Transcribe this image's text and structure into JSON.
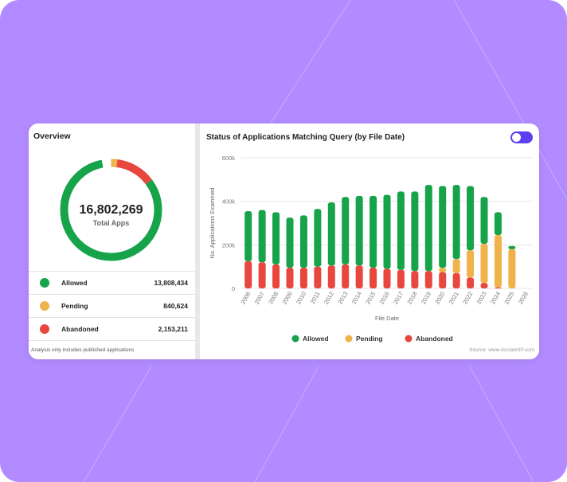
{
  "colors": {
    "background": "#b18bff",
    "allowed": "#16a34a",
    "pending": "#f0b24a",
    "abandoned": "#e8473d",
    "toggle": "#5b3ff0"
  },
  "overview": {
    "title": "Overview",
    "total": "16,802,269",
    "total_label": "Total Apps",
    "legend": [
      {
        "label": "Allowed",
        "value": "13,808,434",
        "color": "#16a34a",
        "amount": 13808434
      },
      {
        "label": "Pending",
        "value": "840,624",
        "color": "#f0b24a",
        "amount": 840624
      },
      {
        "label": "Abandoned",
        "value": "2,153,211",
        "color": "#e8473d",
        "amount": 2153211
      }
    ],
    "note": "Analysis only includes published applications"
  },
  "chart_panel": {
    "title": "Status of Applications Matching Query (by File Date)",
    "source": "Source: www.AcclaimIP.com",
    "toggle_on": true
  },
  "chart_data": {
    "type": "bar",
    "stacked": true,
    "title": "Status of Applications Matching Query (by File Date)",
    "xlabel": "File Date",
    "ylabel": "No. Applications Examined",
    "ylim": [
      0,
      600000
    ],
    "yticks": [
      "0",
      "200k",
      "400k",
      "600k"
    ],
    "ytick_values": [
      0,
      200000,
      400000,
      600000
    ],
    "categories": [
      "2006",
      "2007",
      "2008",
      "2009",
      "2010",
      "2011",
      "2012",
      "2013",
      "2014",
      "2015",
      "2016",
      "2017",
      "2018",
      "2019",
      "2020",
      "2021",
      "2022",
      "2023",
      "2024",
      "2025",
      "2026"
    ],
    "series": [
      {
        "name": "Abandoned",
        "color": "#e8473d",
        "values": [
          125000,
          120000,
          110000,
          95000,
          95000,
          100000,
          105000,
          110000,
          105000,
          95000,
          90000,
          85000,
          80000,
          80000,
          75000,
          70000,
          50000,
          25000,
          5000,
          0,
          0
        ]
      },
      {
        "name": "Pending",
        "color": "#f0b24a",
        "values": [
          0,
          0,
          0,
          0,
          0,
          0,
          0,
          0,
          0,
          0,
          0,
          0,
          0,
          0,
          20000,
          65000,
          125000,
          180000,
          240000,
          180000,
          0
        ]
      },
      {
        "name": "Allowed",
        "color": "#16a34a",
        "values": [
          230000,
          240000,
          240000,
          230000,
          240000,
          265000,
          290000,
          310000,
          320000,
          330000,
          340000,
          360000,
          365000,
          395000,
          375000,
          340000,
          295000,
          215000,
          105000,
          15000,
          0
        ]
      }
    ],
    "legend": [
      "Allowed",
      "Pending",
      "Abandoned"
    ],
    "legend_position": "bottom",
    "grid": true
  }
}
